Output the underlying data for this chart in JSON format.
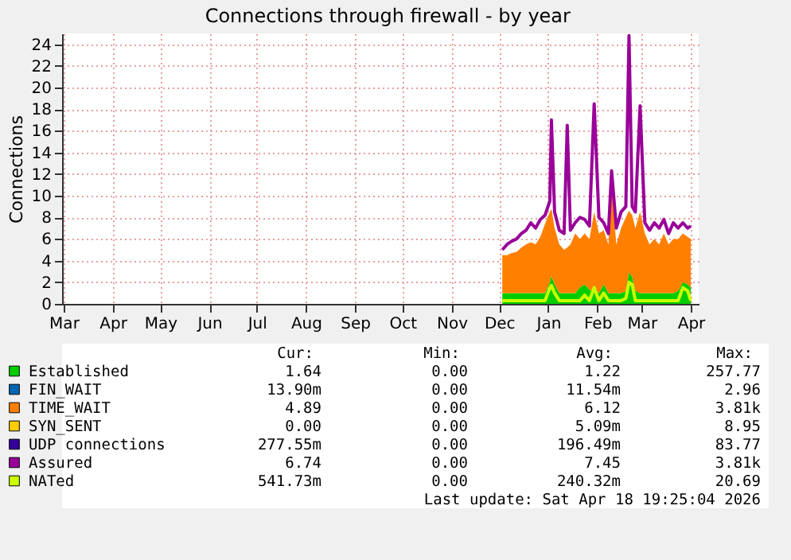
{
  "chart_data": {
    "type": "area",
    "title": "Connections through firewall - by year",
    "ylabel": "Connections",
    "stacked": true,
    "grid": true,
    "legend": "bottom",
    "xlim": [
      "2025-02-28",
      "2026-04-06"
    ],
    "xticks": [
      {
        "value": "2025-03-01",
        "label": "Mar"
      },
      {
        "value": "2025-04-01",
        "label": "Apr"
      },
      {
        "value": "2025-05-01",
        "label": "May"
      },
      {
        "value": "2025-06-01",
        "label": "Jun"
      },
      {
        "value": "2025-07-01",
        "label": "Jul"
      },
      {
        "value": "2025-08-01",
        "label": "Aug"
      },
      {
        "value": "2025-09-01",
        "label": "Sep"
      },
      {
        "value": "2025-10-01",
        "label": "Oct"
      },
      {
        "value": "2025-11-01",
        "label": "Nov"
      },
      {
        "value": "2025-12-01",
        "label": "Dec"
      },
      {
        "value": "2026-01-01",
        "label": "Jan"
      },
      {
        "value": "2026-02-01",
        "label": "Feb"
      },
      {
        "value": "2026-03-01",
        "label": "Mar"
      },
      {
        "value": "2026-04-01",
        "label": "Apr"
      }
    ],
    "ylim": [
      0,
      25
    ],
    "yticks": [
      0,
      2,
      4,
      6,
      8,
      10,
      12,
      14,
      16,
      18,
      20,
      22,
      24
    ],
    "x": [
      "2025-12-03",
      "2025-12-06",
      "2025-12-09",
      "2025-12-12",
      "2025-12-15",
      "2025-12-18",
      "2025-12-21",
      "2025-12-24",
      "2025-12-27",
      "2025-12-30",
      "2026-01-02",
      "2026-01-03",
      "2026-01-05",
      "2026-01-08",
      "2026-01-11",
      "2026-01-13",
      "2026-01-15",
      "2026-01-18",
      "2026-01-21",
      "2026-01-24",
      "2026-01-27",
      "2026-01-30",
      "2026-02-02",
      "2026-02-05",
      "2026-02-08",
      "2026-02-10",
      "2026-02-13",
      "2026-02-16",
      "2026-02-19",
      "2026-02-21",
      "2026-02-23",
      "2026-02-25",
      "2026-02-28",
      "2026-03-03",
      "2026-03-06",
      "2026-03-09",
      "2026-03-12",
      "2026-03-15",
      "2026-03-18",
      "2026-03-21",
      "2026-03-24",
      "2026-03-27",
      "2026-03-30",
      "2026-04-01"
    ],
    "series": [
      {
        "name": "Established",
        "color": "#00cc00",
        "values": [
          1,
          1,
          1,
          1,
          1,
          1,
          1,
          1,
          1,
          1,
          2,
          2.6,
          1.8,
          1,
          1,
          1,
          1,
          1,
          1.5,
          1.8,
          1.3,
          1.2,
          1,
          1.8,
          1,
          1,
          1,
          1,
          1.2,
          2.9,
          2.5,
          1.2,
          1,
          1,
          1,
          1,
          1,
          1,
          1,
          1,
          1.2,
          2,
          1.8,
          1.5
        ]
      },
      {
        "name": "FIN_WAIT",
        "color": "#0066b3",
        "values": [
          null,
          null,
          null,
          null,
          null,
          null,
          null,
          null,
          null,
          null,
          null,
          null,
          null,
          null,
          null,
          null,
          null,
          null,
          null,
          null,
          null,
          null,
          null,
          null,
          null,
          null,
          null,
          null,
          null,
          null,
          null,
          null,
          null,
          null,
          null,
          null,
          null,
          null,
          null,
          null,
          null,
          null,
          null,
          null
        ]
      },
      {
        "name": "TIME_WAIT",
        "color": "#ff8000",
        "values": [
          3.5,
          3.5,
          3.7,
          3.8,
          4.2,
          4.5,
          4.7,
          4.5,
          5.2,
          6.4,
          6.5,
          6.2,
          5.2,
          4.5,
          4,
          4.2,
          4.5,
          5.5,
          4.5,
          4.7,
          4.7,
          7.3,
          5.5,
          5,
          4.5,
          10,
          4.5,
          6,
          6.8,
          5.7,
          5.7,
          5.8,
          7.5,
          5.5,
          4.5,
          5,
          4.5,
          5.5,
          4.5,
          5,
          4.8,
          4.5,
          4.4,
          4.5
        ]
      },
      {
        "name": "SYN_SENT",
        "color": "#ffcc00",
        "values": [
          null,
          null,
          null,
          null,
          null,
          null,
          null,
          null,
          null,
          null,
          null,
          null,
          null,
          null,
          null,
          null,
          null,
          null,
          null,
          null,
          null,
          null,
          null,
          null,
          null,
          null,
          null,
          null,
          null,
          null,
          null,
          null,
          null,
          null,
          null,
          null,
          null,
          null,
          null,
          null,
          null,
          null,
          null,
          null
        ]
      },
      {
        "name": "UDP connections",
        "color": "#330099",
        "values": [
          null,
          null,
          null,
          null,
          null,
          null,
          null,
          null,
          null,
          null,
          null,
          null,
          null,
          null,
          null,
          null,
          null,
          null,
          null,
          null,
          null,
          null,
          null,
          null,
          null,
          null,
          null,
          null,
          null,
          null,
          null,
          null,
          null,
          null,
          null,
          null,
          null,
          null,
          null,
          null,
          null,
          null,
          null,
          null
        ]
      },
      {
        "name": "Assured",
        "color": "#990099",
        "type": "line",
        "values": [
          5,
          5.5,
          5.8,
          6,
          6.5,
          6.8,
          7.5,
          7,
          7.8,
          8.2,
          9.5,
          17,
          8.5,
          6.8,
          6.5,
          16.5,
          6.8,
          7.5,
          8,
          7.8,
          7.2,
          18.5,
          8,
          7.5,
          6.5,
          12.3,
          7,
          8.5,
          9,
          24.8,
          9,
          8.5,
          18.3,
          7.5,
          6.8,
          7.5,
          7,
          7.8,
          6.5,
          7.5,
          7,
          7.5,
          7,
          7.2
        ]
      },
      {
        "name": "NATed",
        "color": "#ccff00",
        "type": "line",
        "values": [
          0.3,
          0.3,
          0.3,
          0.3,
          0.3,
          0.3,
          0.3,
          0.3,
          0.3,
          0.3,
          1.5,
          1.7,
          1,
          0.3,
          0.3,
          0.3,
          0.3,
          0.3,
          0.3,
          0.8,
          0.3,
          1.5,
          0.3,
          1,
          0.3,
          0.3,
          0.3,
          0.3,
          0.5,
          2,
          1.8,
          0.3,
          0.3,
          0.3,
          0.3,
          0.3,
          0.3,
          0.3,
          0.3,
          0.3,
          0.3,
          1.5,
          1.2,
          0.3
        ]
      }
    ],
    "annotations": [
      "Cur:",
      "Min:",
      "Avg:",
      "Max:",
      "1.64",
      "0.00",
      "1.22",
      "257.77",
      "13.90m",
      "0.00",
      "11.54m",
      "2.96",
      "4.89",
      "0.00",
      "6.12",
      "3.81k",
      "0.00",
      "0.00",
      "5.09m",
      "8.95",
      "277.55m",
      "0.00",
      "196.49m",
      "83.77",
      "6.74",
      "0.00",
      "7.45",
      "3.81k",
      "541.73m",
      "0.00",
      "240.32m",
      "20.69",
      "Last update: Sat Apr 18 19:25:04 2026"
    ]
  }
}
